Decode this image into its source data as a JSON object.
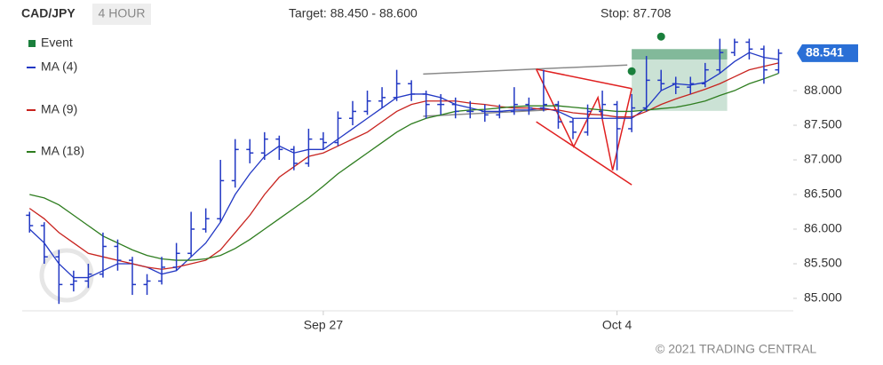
{
  "chart_data": {
    "type": "ohlc",
    "title": "CAD/JPY",
    "subtitle": "4 HOUR",
    "target_text": "Target: 88.450 - 88.600",
    "stop_text": "Stop: 87.708",
    "copyright": "© 2021 TRADING CENTRAL",
    "xlim": [
      -0.5,
      52
    ],
    "xticks": [
      {
        "value": 20,
        "label": "Sep 27"
      },
      {
        "value": 40,
        "label": "Oct 4"
      }
    ],
    "ylim": [
      84.82,
      88.86
    ],
    "yticks": [
      {
        "value": 85,
        "label": "85.000"
      },
      {
        "value": 85.5,
        "label": "85.500"
      },
      {
        "value": 86,
        "label": "86.000"
      },
      {
        "value": 86.5,
        "label": "86.500"
      },
      {
        "value": 87,
        "label": "87.000"
      },
      {
        "value": 87.5,
        "label": "87.500"
      },
      {
        "value": 88,
        "label": "88.000"
      }
    ],
    "last_price": 88.541,
    "last_price_color": "#2a6fd6",
    "ohlc": {
      "color": "#2238c4",
      "open": [
        86.2,
        86.05,
        85.6,
        85.2,
        85.25,
        85.35,
        85.75,
        85.55,
        85.2,
        85.25,
        85.45,
        85.65,
        86.0,
        86.15,
        86.7,
        87.15,
        87.1,
        87.3,
        87.15,
        86.95,
        87.3,
        87.25,
        87.6,
        87.7,
        87.85,
        87.9,
        88.1,
        87.95,
        87.8,
        87.8,
        87.7,
        87.7,
        87.65,
        87.7,
        87.8,
        87.75,
        87.8,
        87.55,
        87.4,
        87.7,
        87.8,
        87.45,
        87.75,
        88.15,
        88.1,
        88.05,
        88.1,
        88.3,
        88.55,
        88.7,
        88.6,
        88.3
      ],
      "high": [
        86.25,
        86.1,
        85.7,
        85.4,
        85.5,
        85.95,
        85.85,
        85.6,
        85.35,
        85.6,
        85.8,
        86.25,
        86.3,
        87.0,
        87.3,
        87.3,
        87.4,
        87.35,
        87.2,
        87.45,
        87.4,
        87.7,
        87.85,
        88.0,
        88.05,
        88.3,
        88.15,
        88.0,
        87.95,
        87.9,
        87.85,
        87.8,
        87.8,
        88.05,
        87.9,
        88.3,
        87.85,
        87.6,
        87.8,
        88.0,
        87.85,
        87.95,
        88.5,
        88.3,
        88.2,
        88.2,
        88.4,
        88.75,
        88.75,
        88.75,
        88.65,
        88.6
      ],
      "low": [
        85.95,
        85.5,
        84.92,
        85.1,
        85.15,
        85.3,
        85.4,
        85.05,
        85.05,
        85.2,
        85.4,
        85.6,
        85.95,
        86.1,
        86.6,
        86.95,
        87.0,
        87.0,
        86.85,
        86.9,
        87.15,
        87.2,
        87.5,
        87.65,
        87.75,
        87.85,
        87.85,
        87.6,
        87.65,
        87.6,
        87.6,
        87.55,
        87.6,
        87.65,
        87.65,
        87.7,
        87.45,
        87.3,
        87.35,
        87.6,
        86.85,
        87.4,
        87.7,
        88.0,
        87.95,
        87.95,
        88.05,
        88.25,
        88.5,
        88.45,
        88.1,
        88.25
      ],
      "close": [
        86.05,
        85.6,
        85.2,
        85.25,
        85.35,
        85.75,
        85.55,
        85.2,
        85.25,
        85.45,
        85.65,
        86.0,
        86.15,
        86.7,
        87.15,
        87.1,
        87.3,
        87.15,
        86.95,
        87.3,
        87.25,
        87.6,
        87.7,
        87.85,
        87.9,
        88.1,
        87.95,
        87.8,
        87.8,
        87.7,
        87.7,
        87.65,
        87.7,
        87.8,
        87.75,
        87.8,
        87.55,
        87.4,
        87.7,
        87.8,
        87.45,
        87.75,
        88.15,
        88.1,
        88.05,
        88.1,
        88.3,
        88.55,
        88.7,
        88.6,
        88.3,
        88.54
      ]
    },
    "series": [
      {
        "name": "MA (4)",
        "color": "#2238c4",
        "values": [
          86.0,
          85.8,
          85.5,
          85.3,
          85.3,
          85.4,
          85.5,
          85.5,
          85.45,
          85.35,
          85.4,
          85.6,
          85.8,
          86.1,
          86.5,
          86.8,
          87.05,
          87.2,
          87.1,
          87.15,
          87.15,
          87.3,
          87.45,
          87.6,
          87.75,
          87.9,
          87.95,
          87.95,
          87.9,
          87.8,
          87.75,
          87.7,
          87.7,
          87.72,
          87.72,
          87.75,
          87.7,
          87.6,
          87.6,
          87.6,
          87.6,
          87.6,
          87.75,
          88.0,
          88.1,
          88.08,
          88.12,
          88.25,
          88.42,
          88.55,
          88.48,
          88.45
        ]
      },
      {
        "name": "MA (9)",
        "color": "#c8231e",
        "values": [
          86.3,
          86.15,
          85.95,
          85.8,
          85.65,
          85.6,
          85.55,
          85.5,
          85.45,
          85.42,
          85.45,
          85.5,
          85.55,
          85.7,
          85.95,
          86.2,
          86.5,
          86.75,
          86.9,
          87.05,
          87.1,
          87.2,
          87.3,
          87.4,
          87.55,
          87.7,
          87.8,
          87.85,
          87.85,
          87.85,
          87.82,
          87.8,
          87.77,
          87.75,
          87.75,
          87.73,
          87.72,
          87.68,
          87.66,
          87.65,
          87.62,
          87.62,
          87.7,
          87.8,
          87.88,
          87.95,
          88.02,
          88.1,
          88.2,
          88.3,
          88.35,
          88.4
        ]
      },
      {
        "name": "MA (18)",
        "color": "#2e7d1f",
        "values": [
          86.5,
          86.45,
          86.35,
          86.2,
          86.05,
          85.9,
          85.8,
          85.7,
          85.62,
          85.57,
          85.55,
          85.55,
          85.57,
          85.62,
          85.72,
          85.85,
          86.0,
          86.15,
          86.3,
          86.45,
          86.62,
          86.8,
          86.95,
          87.1,
          87.25,
          87.4,
          87.52,
          87.6,
          87.65,
          87.7,
          87.72,
          87.73,
          87.75,
          87.77,
          87.78,
          87.78,
          87.78,
          87.76,
          87.74,
          87.72,
          87.7,
          87.7,
          87.72,
          87.74,
          87.76,
          87.8,
          87.85,
          87.93,
          88.0,
          88.1,
          88.17,
          88.25
        ]
      }
    ],
    "events": {
      "name": "Event",
      "color": "#1a7f3c",
      "x": [
        41,
        43
      ],
      "values": [
        88.28,
        88.78
      ]
    },
    "target_zone": {
      "x": [
        41,
        47.5
      ],
      "values": [
        88.45,
        88.6
      ],
      "color": "#2e8b57"
    },
    "stop": 87.708,
    "trendlines": [
      {
        "color": "#8a8a8a",
        "x": [
          26.8,
          40.7
        ],
        "values": [
          88.24,
          88.37
        ]
      },
      {
        "color": "#8a8a8a",
        "x": [
          26.8,
          35.2
        ],
        "values": [
          87.63,
          87.72
        ]
      },
      {
        "color": "#e02020",
        "x": [
          34.5,
          41.0
        ],
        "values": [
          88.31,
          88.03
        ]
      },
      {
        "color": "#e02020",
        "x": [
          34.5,
          41.0
        ],
        "values": [
          87.55,
          86.64
        ]
      },
      {
        "color": "#e02020",
        "x": [
          34.5,
          37.05,
          38.7,
          39.7,
          41.0
        ],
        "values": [
          88.31,
          87.19,
          87.9,
          86.85,
          88.03
        ]
      }
    ]
  }
}
